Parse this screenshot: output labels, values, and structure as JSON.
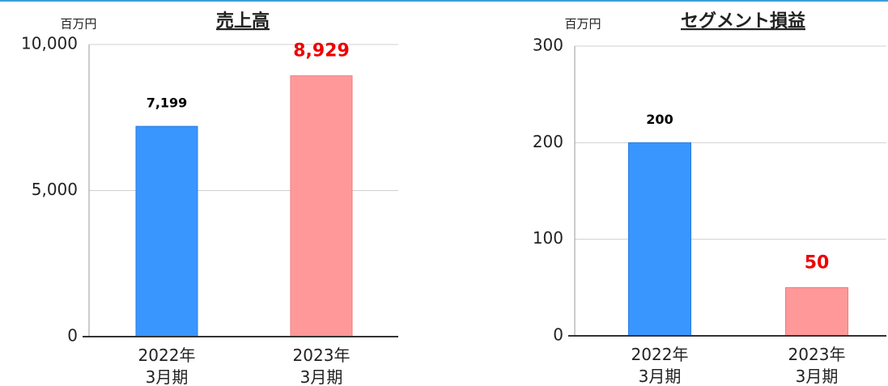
{
  "chart_data": [
    {
      "type": "bar",
      "title": "売上高",
      "unit_label": "百万円",
      "categories": [
        "2022年\n3月期",
        "2023年\n3月期"
      ],
      "values": [
        7199,
        8929
      ],
      "value_labels": [
        "7,199",
        "8,929"
      ],
      "colors": [
        "#3a96ff",
        "#ff9999"
      ],
      "label_colors": [
        "#000000",
        "#ee0000"
      ],
      "ylim": [
        0,
        10000
      ],
      "yticks": [
        0,
        {
          "value": 5000,
          "label": "5,000"
        },
        {
          "value": 10000,
          "label": "10,000"
        }
      ],
      "grid": true
    },
    {
      "type": "bar",
      "title": "セグメント損益",
      "unit_label": "百万円",
      "categories": [
        "2022年\n3月期",
        "2023年\n3月期"
      ],
      "values": [
        200,
        50
      ],
      "colors": [
        "#3a96ff",
        "#ff9999"
      ],
      "label_colors": [
        "#000000",
        "#ee0000"
      ],
      "ylim": [
        0,
        300
      ],
      "yticks": [
        0,
        100,
        200,
        300
      ],
      "grid": true
    }
  ]
}
